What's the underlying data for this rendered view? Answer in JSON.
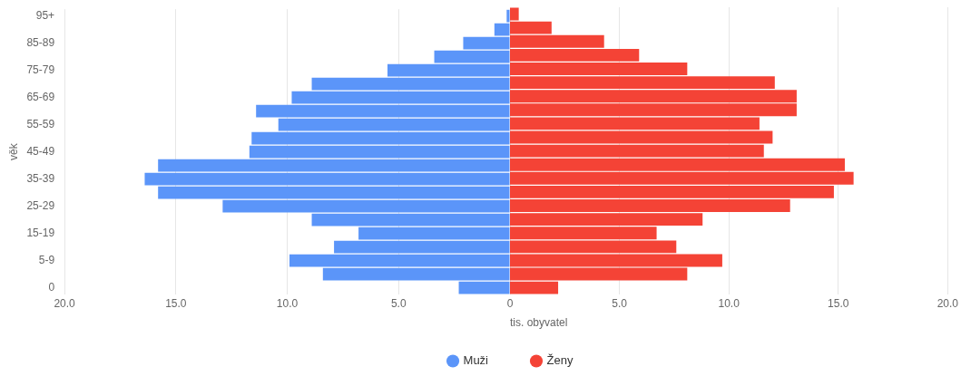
{
  "chart_data": [
    {
      "type": "bar",
      "orientation": "horizontal",
      "ylabel": "věk",
      "categories": [
        "95+",
        null,
        "85-89",
        null,
        "75-79",
        null,
        "65-69",
        null,
        "55-59",
        null,
        "45-49",
        null,
        "35-39",
        null,
        "25-29",
        null,
        "15-19",
        null,
        "5-9",
        null,
        "0"
      ],
      "series": [
        {
          "name": "Muži",
          "color": "#5b95f9",
          "values": [
            0.15,
            0.7,
            2.1,
            3.4,
            5.5,
            8.9,
            9.8,
            11.4,
            10.4,
            11.6,
            11.7,
            15.8,
            16.4,
            15.8,
            12.9,
            8.9,
            6.8,
            7.9,
            9.9,
            8.4,
            2.3
          ]
        }
      ],
      "xlim": [
        20,
        0
      ],
      "xticks": [
        {
          "value": 20,
          "label": "20.0"
        },
        {
          "value": 15,
          "label": "15.0"
        },
        {
          "value": 10,
          "label": "10.0"
        },
        {
          "value": 5,
          "label": "5.0"
        },
        0
      ],
      "grid": "x",
      "legend": "bottom"
    },
    {
      "type": "bar",
      "orientation": "horizontal",
      "xlabel": "tis. obyvatel",
      "series": [
        {
          "name": "Ženy",
          "color": "#f44336",
          "values": [
            0.4,
            1.9,
            4.3,
            5.9,
            8.1,
            12.1,
            13.1,
            13.1,
            11.4,
            12.0,
            11.6,
            15.3,
            15.7,
            14.8,
            12.8,
            8.8,
            6.7,
            7.6,
            9.7,
            8.1,
            2.2
          ]
        }
      ],
      "xlim": [
        0,
        20
      ],
      "xticks": [
        {
          "value": 5,
          "label": "5.0"
        },
        {
          "value": 10,
          "label": "10.0"
        },
        {
          "value": 15,
          "label": "15.0"
        },
        {
          "value": 20,
          "label": "20.0"
        }
      ],
      "grid": "x",
      "legend": "bottom",
      "tick_labels": "x"
    }
  ]
}
